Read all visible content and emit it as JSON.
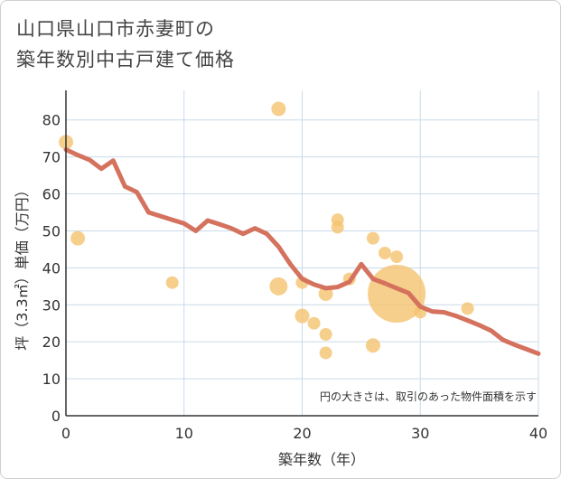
{
  "title_line1": "山口県山口市赤妻町の",
  "title_line2": "築年数別中古戸建て価格",
  "colors": {
    "bubble": "#f5c26b",
    "line": "#d4725e",
    "grid": "#c9dbe8"
  },
  "chart_data": {
    "type": "scatter",
    "xlabel": "築年数（年）",
    "ylabel": "坪（3.3㎡）単価（万円）",
    "xlim": [
      0,
      40
    ],
    "ylim": [
      0,
      88
    ],
    "x_ticks": [
      0,
      10,
      20,
      30,
      40
    ],
    "y_ticks": [
      0,
      10,
      20,
      30,
      40,
      50,
      60,
      70,
      80
    ],
    "note": "円の大きさは、取引のあった物件面積を示す",
    "points": [
      {
        "x": 0,
        "y": 74,
        "r": 8
      },
      {
        "x": 1,
        "y": 48,
        "r": 8
      },
      {
        "x": 9,
        "y": 36,
        "r": 7
      },
      {
        "x": 18,
        "y": 83,
        "r": 8
      },
      {
        "x": 18,
        "y": 35,
        "r": 10
      },
      {
        "x": 20,
        "y": 36,
        "r": 7
      },
      {
        "x": 20,
        "y": 27,
        "r": 8
      },
      {
        "x": 21,
        "y": 25,
        "r": 7
      },
      {
        "x": 22,
        "y": 33,
        "r": 8
      },
      {
        "x": 22,
        "y": 22,
        "r": 7
      },
      {
        "x": 22,
        "y": 17,
        "r": 7
      },
      {
        "x": 23,
        "y": 53,
        "r": 7
      },
      {
        "x": 23,
        "y": 51,
        "r": 7
      },
      {
        "x": 24,
        "y": 37,
        "r": 7
      },
      {
        "x": 26,
        "y": 48,
        "r": 7
      },
      {
        "x": 26,
        "y": 19,
        "r": 8
      },
      {
        "x": 27,
        "y": 44,
        "r": 7
      },
      {
        "x": 28,
        "y": 43,
        "r": 7
      },
      {
        "x": 28,
        "y": 33,
        "r": 32
      },
      {
        "x": 30,
        "y": 28,
        "r": 7
      },
      {
        "x": 34,
        "y": 29,
        "r": 7
      }
    ],
    "series": [
      {
        "name": "trend",
        "x": [
          0,
          1,
          2,
          3,
          4,
          5,
          6,
          7,
          8,
          9,
          10,
          11,
          12,
          13,
          14,
          15,
          16,
          17,
          18,
          19,
          20,
          21,
          22,
          23,
          24,
          25,
          26,
          27,
          28,
          29,
          30,
          31,
          32,
          33,
          34,
          35,
          36,
          37,
          38,
          39,
          40
        ],
        "y": [
          72,
          70.5,
          69.2,
          66.8,
          69,
          62,
          60.5,
          55,
          54,
          53,
          52,
          50,
          52.8,
          51.8,
          50.7,
          49.2,
          50.7,
          49.2,
          45.7,
          41,
          37,
          35.5,
          34.5,
          34.8,
          36.2,
          41,
          37,
          35.8,
          34.5,
          33.2,
          29.5,
          28.2,
          28,
          27,
          25.8,
          24.5,
          23,
          20.5,
          19.2,
          18,
          16.8
        ]
      }
    ]
  }
}
